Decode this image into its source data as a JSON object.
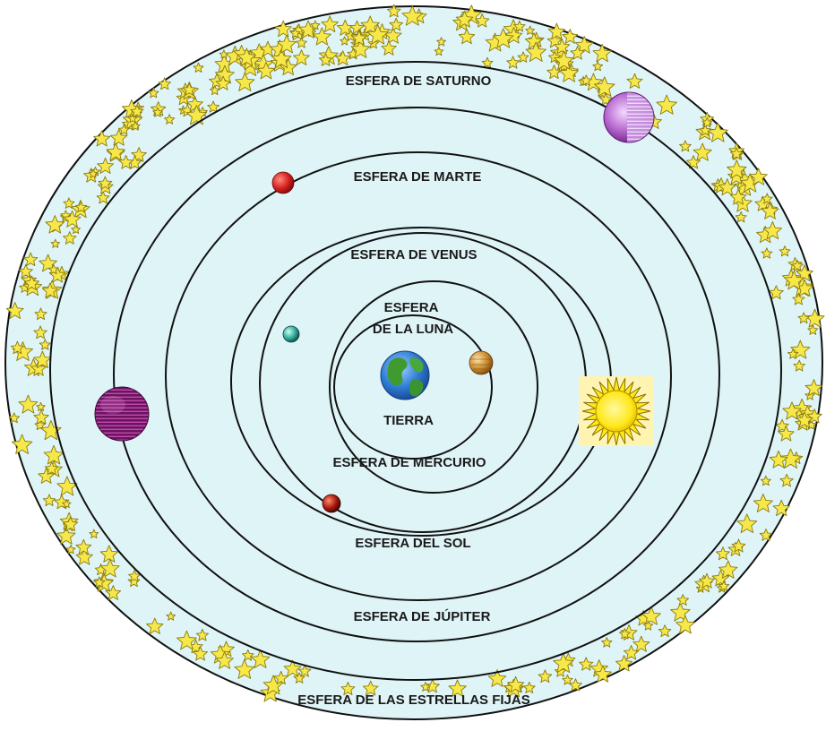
{
  "colors": {
    "background": "#ffffff",
    "sphere_fill": "#dff4f7",
    "orbit_stroke": "#111111",
    "star_fill": "#f7e84a",
    "star_stroke": "#8a7a10",
    "earth": "#2f7fd6",
    "mars": "#d61f1f",
    "saturn": "#8a2c9a",
    "jupiter": "#6a145e",
    "sun": "#ffe81a"
  },
  "labels": {
    "saturno": "ESFERA DE SATURNO",
    "marte": "ESFERA DE MARTE",
    "venus": "ESFERA DE VENUS",
    "luna_line1": "ESFERA",
    "luna_line2": "DE LA LUNA",
    "tierra": "TIERRA",
    "mercurio": "ESFERA DE MERCURIO",
    "sol": "ESFERA DEL SOL",
    "jupiter": "ESFERA DE JÚPITER",
    "estrellas": "ESFERA DE LAS ESTRELLAS FIJAS"
  },
  "bodies": [
    {
      "name": "earth-icon"
    },
    {
      "name": "moon-icon"
    },
    {
      "name": "mercury-icon"
    },
    {
      "name": "venus-icon"
    },
    {
      "name": "sun-icon"
    },
    {
      "name": "mars-icon"
    },
    {
      "name": "jupiter-icon"
    },
    {
      "name": "saturn-icon"
    }
  ]
}
